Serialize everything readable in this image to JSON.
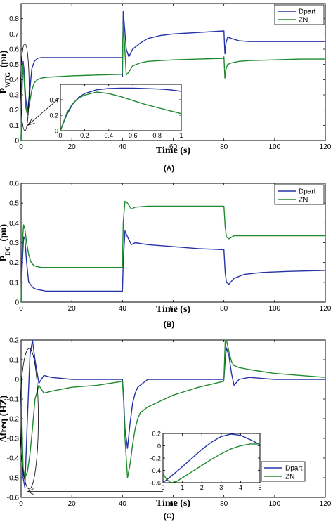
{
  "colors": {
    "Dpart": "#2633a8",
    "ZN": "#1f8a2e"
  },
  "chart_data": [
    {
      "type": "line",
      "panel_label": "(A)",
      "ylabel_main": "P",
      "ylabel_sub": "WTG",
      "ylabel_unit": "(pu)",
      "xlabel": "Time (s)",
      "xlim": [
        0,
        120
      ],
      "ylim": [
        0,
        0.9
      ],
      "xticks": [
        0,
        20,
        40,
        60,
        80,
        100,
        120
      ],
      "yticks": [
        0,
        0.1,
        0.2,
        0.3,
        0.4,
        0.5,
        0.6,
        0.7,
        0.8
      ],
      "legend": [
        "Dpart",
        "ZN"
      ],
      "series": [
        {
          "name": "Dpart",
          "x": [
            0,
            0.3,
            0.8,
            1.2,
            1.8,
            2.5,
            3.3,
            4.2,
            5.2,
            6.5,
            8,
            10,
            15,
            20,
            30,
            39.9,
            40,
            40.3,
            40.8,
            41.5,
            42.5,
            44,
            47,
            50,
            55,
            60,
            70,
            79.9,
            80,
            80.4,
            80.8,
            81.5,
            83,
            86,
            90,
            100,
            110,
            120
          ],
          "y": [
            0,
            0.3,
            0.52,
            0.46,
            0.28,
            0.19,
            0.3,
            0.47,
            0.52,
            0.54,
            0.545,
            0.545,
            0.545,
            0.545,
            0.545,
            0.545,
            0.42,
            0.85,
            0.75,
            0.6,
            0.55,
            0.6,
            0.64,
            0.67,
            0.69,
            0.7,
            0.71,
            0.72,
            0.72,
            0.57,
            0.64,
            0.68,
            0.67,
            0.655,
            0.65,
            0.65,
            0.65,
            0.65
          ]
        },
        {
          "name": "ZN",
          "x": [
            0,
            0.3,
            0.8,
            1.2,
            1.8,
            2.5,
            3.3,
            4.2,
            5.2,
            6.5,
            8,
            10,
            15,
            20,
            30,
            39.9,
            40,
            40.3,
            40.8,
            41.5,
            42.5,
            44,
            47,
            50,
            55,
            60,
            70,
            79.9,
            80,
            80.4,
            80.8,
            81.5,
            83,
            86,
            90,
            100,
            110,
            120
          ],
          "y": [
            0,
            0.35,
            0.5,
            0.4,
            0.22,
            0.17,
            0.24,
            0.33,
            0.38,
            0.4,
            0.41,
            0.415,
            0.42,
            0.425,
            0.43,
            0.435,
            0.55,
            0.76,
            0.64,
            0.43,
            0.45,
            0.49,
            0.51,
            0.52,
            0.525,
            0.53,
            0.535,
            0.54,
            0.55,
            0.41,
            0.47,
            0.5,
            0.51,
            0.52,
            0.525,
            0.53,
            0.535,
            0.535
          ]
        }
      ],
      "inset": {
        "xlim": [
          0,
          1
        ],
        "ylim": [
          0,
          0.6
        ],
        "xticks": [
          0,
          0.2,
          0.4,
          0.6,
          0.8,
          1
        ],
        "xtick_labels": [
          "0",
          "0.2",
          "0.4",
          "0.6",
          "0.8",
          "1"
        ],
        "yticks": [
          0,
          0.2,
          0.4
        ],
        "ytick_labels": [
          "0",
          "0.2",
          "0.4"
        ],
        "series": [
          {
            "name": "Dpart",
            "x": [
              0,
              0.05,
              0.1,
              0.15,
              0.2,
              0.3,
              0.4,
              0.5,
              0.6,
              0.7,
              0.8,
              0.9,
              1
            ],
            "y": [
              0,
              0.2,
              0.34,
              0.43,
              0.48,
              0.53,
              0.545,
              0.55,
              0.55,
              0.545,
              0.54,
              0.53,
              0.51
            ]
          },
          {
            "name": "ZN",
            "x": [
              0,
              0.05,
              0.1,
              0.15,
              0.2,
              0.3,
              0.4,
              0.5,
              0.6,
              0.7,
              0.8,
              0.9,
              1
            ],
            "y": [
              0,
              0.22,
              0.35,
              0.42,
              0.46,
              0.5,
              0.48,
              0.44,
              0.39,
              0.34,
              0.3,
              0.26,
              0.22
            ]
          }
        ]
      }
    },
    {
      "type": "line",
      "panel_label": "(B)",
      "ylabel_main": "P",
      "ylabel_sub": "DG",
      "ylabel_unit": "(pu)",
      "xlabel": "Time (s)",
      "xlim": [
        0,
        120
      ],
      "ylim": [
        0,
        0.6
      ],
      "xticks": [
        0,
        20,
        40,
        60,
        80,
        100,
        120
      ],
      "yticks": [
        0,
        0.1,
        0.2,
        0.3,
        0.4,
        0.5,
        0.6
      ],
      "legend": [
        "Dpart",
        "ZN"
      ],
      "series": [
        {
          "name": "Dpart",
          "x": [
            0,
            0.5,
            1,
            1.5,
            2.2,
            3,
            4,
            5,
            6,
            8,
            10,
            15,
            20,
            30,
            40,
            40.3,
            41,
            42,
            43.5,
            45,
            50,
            55,
            60,
            70,
            79.9,
            80,
            80.5,
            81,
            82,
            84,
            88,
            95,
            105,
            120
          ],
          "y": [
            0,
            0.2,
            0.33,
            0.32,
            0.2,
            0.1,
            0.085,
            0.07,
            0.065,
            0.06,
            0.055,
            0.055,
            0.055,
            0.055,
            0.055,
            0.2,
            0.36,
            0.33,
            0.29,
            0.3,
            0.29,
            0.285,
            0.28,
            0.27,
            0.265,
            0.265,
            0.15,
            0.1,
            0.09,
            0.12,
            0.14,
            0.15,
            0.155,
            0.16
          ]
        },
        {
          "name": "ZN",
          "x": [
            0,
            0.5,
            1,
            1.5,
            2.2,
            3,
            4,
            5,
            6,
            8,
            10,
            15,
            20,
            30,
            40,
            40.3,
            41,
            42,
            43.5,
            45,
            50,
            55,
            60,
            70,
            79.9,
            80,
            80.5,
            81,
            82,
            84,
            88,
            95,
            105,
            120
          ],
          "y": [
            0,
            0.3,
            0.39,
            0.37,
            0.3,
            0.24,
            0.2,
            0.185,
            0.18,
            0.175,
            0.175,
            0.175,
            0.175,
            0.175,
            0.175,
            0.4,
            0.51,
            0.5,
            0.47,
            0.48,
            0.485,
            0.485,
            0.485,
            0.485,
            0.485,
            0.485,
            0.38,
            0.33,
            0.32,
            0.335,
            0.335,
            0.335,
            0.335,
            0.335
          ]
        }
      ]
    },
    {
      "type": "line",
      "panel_label": "(C)",
      "ylabel_main": "Δfreq (HZ)",
      "xlabel": "Time (s)",
      "xlim": [
        0,
        120
      ],
      "ylim": [
        -0.6,
        0.2
      ],
      "xticks": [
        0,
        20,
        40,
        60,
        80,
        100,
        120
      ],
      "yticks": [
        -0.6,
        -0.5,
        -0.4,
        -0.3,
        -0.2,
        -0.1,
        0,
        0.1,
        0.2
      ],
      "ytick_labels": [
        "-0.6",
        "-0.5",
        "-0.4",
        "-0.3",
        "-0.2",
        "-0.1",
        "0",
        "0.1",
        "0.2"
      ],
      "legend": [
        "Dpart",
        "ZN"
      ],
      "series": [
        {
          "name": "Dpart",
          "x": [
            0,
            0.3,
            0.8,
            1.5,
            2.5,
            3.5,
            4.5,
            5.5,
            7,
            9,
            12,
            20,
            30,
            39.9,
            40,
            40.5,
            41,
            42,
            43,
            44,
            45,
            46,
            47,
            50,
            55,
            60,
            70,
            79.9,
            80,
            80.5,
            81,
            82,
            83,
            84,
            86,
            90,
            100,
            120
          ],
          "y": [
            0,
            -0.3,
            -0.5,
            -0.55,
            -0.2,
            0.12,
            0.2,
            0.1,
            -0.02,
            0.02,
            0.01,
            0,
            0,
            0,
            0,
            -0.1,
            -0.25,
            -0.35,
            -0.22,
            -0.12,
            -0.07,
            -0.04,
            -0.03,
            0,
            0,
            0,
            0,
            0,
            0,
            0.1,
            0.16,
            0.12,
            0.03,
            -0.03,
            0,
            0.01,
            0,
            0
          ]
        },
        {
          "name": "ZN",
          "x": [
            0,
            0.3,
            0.8,
            1.5,
            2.5,
            3.5,
            4.5,
            5.5,
            7,
            9,
            12,
            20,
            30,
            39.9,
            40,
            40.5,
            41,
            42,
            43,
            44,
            45,
            46,
            47,
            50,
            55,
            60,
            70,
            79.9,
            80,
            80.5,
            81,
            82,
            83,
            84,
            86,
            90,
            100,
            120
          ],
          "y": [
            0,
            -0.2,
            -0.45,
            -0.5,
            -0.47,
            -0.38,
            -0.25,
            -0.1,
            -0.03,
            -0.07,
            -0.06,
            -0.04,
            -0.03,
            -0.01,
            -0.01,
            -0.12,
            -0.3,
            -0.5,
            -0.43,
            -0.33,
            -0.25,
            -0.2,
            -0.17,
            -0.14,
            -0.11,
            -0.08,
            -0.04,
            -0.01,
            0.0,
            0.19,
            0.2,
            0.14,
            0.09,
            0.07,
            0.06,
            0.05,
            0.03,
            0.01
          ]
        }
      ],
      "inset": {
        "xlim": [
          0,
          5
        ],
        "ylim": [
          -0.6,
          0.2
        ],
        "xticks": [
          0,
          1,
          2,
          3,
          4,
          5
        ],
        "xtick_labels": [
          "0",
          "1",
          "2",
          "3",
          "4",
          "5"
        ],
        "yticks": [
          -0.6,
          -0.4,
          -0.2,
          0,
          0.2
        ],
        "ytick_labels": [
          "-0.6",
          "-0.4",
          "-0.2",
          "0",
          "0.2"
        ],
        "series": [
          {
            "name": "Dpart",
            "x": [
              0,
              0.2,
              0.4,
              0.7,
              1,
              1.5,
              2,
              2.5,
              3,
              3.5,
              4,
              4.5,
              5
            ],
            "y": [
              -0.6,
              -0.55,
              -0.5,
              -0.42,
              -0.34,
              -0.2,
              -0.06,
              0.06,
              0.15,
              0.19,
              0.17,
              0.1,
              0.02
            ]
          },
          {
            "name": "ZN",
            "x": [
              0,
              0.2,
              0.4,
              0.7,
              1,
              1.5,
              2,
              2.5,
              3,
              3.5,
              4,
              4.5,
              5
            ],
            "y": [
              -0.45,
              -0.55,
              -0.6,
              -0.58,
              -0.52,
              -0.42,
              -0.32,
              -0.22,
              -0.13,
              -0.05,
              0.0,
              0.03,
              0.03
            ]
          }
        ],
        "legend": [
          "Dpart",
          "ZN"
        ]
      }
    }
  ]
}
